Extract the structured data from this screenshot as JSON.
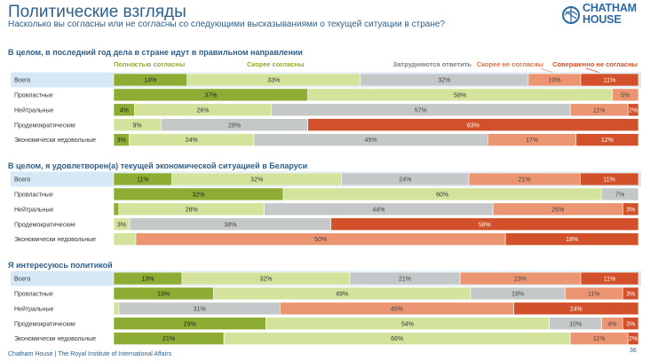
{
  "header": {
    "title": "Политические взгляды",
    "subtitle": "Насколько вы согласны или не согласны со следующими высказываниями о текущей ситуации в стране?"
  },
  "logo": {
    "line1": "CHATHAM",
    "line2": "HOUSE"
  },
  "footer": {
    "org": "Chatham House",
    "separator": "|",
    "institute": "The Royal Institute of International Affairs",
    "page": "36"
  },
  "colors": {
    "strongly_agree": "#8dac34",
    "somewhat_agree": "#d4e39b",
    "neutral": "#c5c8c9",
    "somewhat_disagree": "#ec9572",
    "strongly_disagree": "#d2502a",
    "highlight_row": "#d6e8f5",
    "heading": "#2f5f8c"
  },
  "chart_data": {
    "type": "bar",
    "stacked": "horizontal-100%",
    "legend": [
      {
        "name": "Полностью согласны",
        "color": "#8dac34"
      },
      {
        "name": "Скорее согласны",
        "color": "#8dac34"
      },
      {
        "name": "Затрудняются ответить",
        "color": "#7f7f7f"
      },
      {
        "name": "Скорее не согласны",
        "color": "#e2703f"
      },
      {
        "name": "Совершенно не согласны",
        "color": "#d2502a"
      }
    ],
    "panels": [
      {
        "title": "В целом, в последний год дела в стране идут в правильном направлении",
        "rows": [
          {
            "label": "Всего",
            "values": [
              14,
              33,
              32,
              10,
              11
            ],
            "labels": [
              "14%",
              "33%",
              "32%",
              "10%",
              "11%"
            ]
          },
          {
            "label": "Провластные",
            "values": [
              37,
              58,
              0,
              5,
              0
            ],
            "labels": [
              "37%",
              "58%",
              "",
              "5%",
              ""
            ]
          },
          {
            "label": "Нейтральные",
            "values": [
              4,
              26,
              57,
              11,
              2
            ],
            "labels": [
              "4%",
              "26%",
              "57%",
              "11%",
              "2%"
            ]
          },
          {
            "label": "Продемократические",
            "values": [
              0,
              9,
              28,
              0,
              63
            ],
            "labels": [
              "",
              "9%",
              "28%",
              "",
              "63%"
            ]
          },
          {
            "label": "Экономически недовольные",
            "values": [
              3,
              24,
              45,
              17,
              12
            ],
            "labels": [
              "3%",
              "24%",
              "45%",
              "17%",
              "12%"
            ]
          }
        ]
      },
      {
        "title": "В целом, я удовлетворен(а) текущей экономической ситуацией в Беларуси",
        "rows": [
          {
            "label": "Всего",
            "values": [
              11,
              32,
              24,
              21,
              11
            ],
            "labels": [
              "11%",
              "32%",
              "24%",
              "21%",
              "11%"
            ]
          },
          {
            "label": "Провластные",
            "values": [
              32,
              60,
              7,
              0,
              0
            ],
            "labels": [
              "32%",
              "60%",
              "7%",
              "",
              ""
            ]
          },
          {
            "label": "Нейтральные",
            "values": [
              1,
              28,
              44,
              25,
              3
            ],
            "labels": [
              "",
              "28%",
              "44%",
              "25%",
              "3%"
            ]
          },
          {
            "label": "Продемократические",
            "values": [
              0,
              3,
              38,
              0,
              58
            ],
            "labels": [
              "",
              "3%",
              "38%",
              "",
              "58%"
            ]
          },
          {
            "label": "Экономически недовольные",
            "values": [
              0,
              3,
              0,
              50,
              18
            ],
            "labels": [
              "",
              "",
              "",
              "50%",
              "18%"
            ]
          }
        ]
      },
      {
        "title": "Я интересуюсь политикой",
        "rows": [
          {
            "label": "Всего",
            "values": [
              13,
              32,
              21,
              23,
              11
            ],
            "labels": [
              "13%",
              "32%",
              "21%",
              "23%",
              "11%"
            ]
          },
          {
            "label": "Провластные",
            "values": [
              19,
              49,
              18,
              11,
              3
            ],
            "labels": [
              "19%",
              "49%",
              "18%",
              "11%",
              "3%"
            ]
          },
          {
            "label": "Нейтральные",
            "values": [
              0,
              1,
              31,
              45,
              24
            ],
            "labels": [
              "",
              "",
              "31%",
              "45%",
              "24%"
            ]
          },
          {
            "label": "Продемократические",
            "values": [
              29,
              54,
              10,
              4,
              3
            ],
            "labels": [
              "29%",
              "54%",
              "10%",
              "4%",
              "3%"
            ]
          },
          {
            "label": "Экономически недовольные",
            "values": [
              21,
              66,
              0,
              11,
              2
            ],
            "labels": [
              "21%",
              "66%",
              "",
              "11%",
              "2%"
            ]
          }
        ]
      }
    ]
  }
}
